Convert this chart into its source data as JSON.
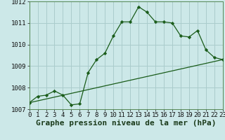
{
  "xlabel": "Graphe pression niveau de la mer (hPa)",
  "background_color": "#cce8e8",
  "grid_color": "#aacccc",
  "line_color": "#1a5c1a",
  "marker_color": "#1a5c1a",
  "ylim": [
    1007,
    1012
  ],
  "xlim": [
    0,
    23
  ],
  "yticks": [
    1007,
    1008,
    1009,
    1010,
    1011,
    1012
  ],
  "xticks": [
    0,
    1,
    2,
    3,
    4,
    5,
    6,
    7,
    8,
    9,
    10,
    11,
    12,
    13,
    14,
    15,
    16,
    17,
    18,
    19,
    20,
    21,
    22,
    23
  ],
  "main_x": [
    0,
    1,
    2,
    3,
    4,
    5,
    6,
    7,
    8,
    9,
    10,
    11,
    12,
    13,
    14,
    15,
    16,
    17,
    18,
    19,
    20,
    21,
    22,
    23
  ],
  "main_y": [
    1007.3,
    1007.6,
    1007.65,
    1007.85,
    1007.65,
    1007.2,
    1007.25,
    1008.7,
    1009.3,
    1009.6,
    1010.4,
    1011.05,
    1011.05,
    1011.75,
    1011.5,
    1011.05,
    1011.05,
    1011.0,
    1010.4,
    1010.35,
    1010.65,
    1009.75,
    1009.4,
    1009.3
  ],
  "trend_x": [
    0,
    23
  ],
  "trend_y": [
    1007.3,
    1009.3
  ],
  "xlabel_fontsize": 8,
  "tick_fontsize": 6.5,
  "ytick_labels": [
    "1007",
    "1008",
    "1009",
    "1010",
    "1011",
    "1012"
  ]
}
